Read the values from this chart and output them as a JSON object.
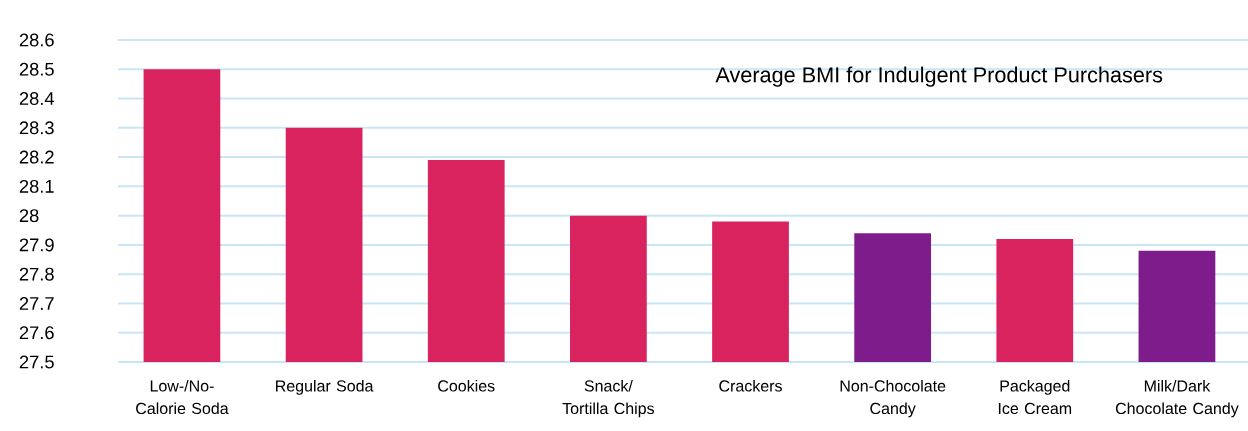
{
  "chart_data": {
    "type": "bar",
    "title": "Average BMI for Indulgent Product Purchasers",
    "categories": [
      "Low-/No-Calorie Soda",
      "Regular Soda",
      "Cookies",
      "Snack/ Tortilla Chips",
      "Crackers",
      "Non-Chocolate Candy",
      "Packaged Ice Cream",
      "Milk/Dark Chocolate Candy"
    ],
    "values": [
      28.5,
      28.3,
      28.19,
      28.0,
      27.98,
      27.94,
      27.92,
      27.88
    ],
    "colors": [
      "#d9235f",
      "#d9235f",
      "#d9235f",
      "#d9235f",
      "#d9235f",
      "#7f1c8c",
      "#d9235f",
      "#7f1c8c"
    ],
    "ylim": [
      27.5,
      28.6
    ],
    "yticks": [
      27.5,
      27.6,
      27.7,
      27.8,
      27.9,
      28,
      28.1,
      28.2,
      28.3,
      28.4,
      28.5,
      28.6
    ],
    "grid": "y"
  }
}
